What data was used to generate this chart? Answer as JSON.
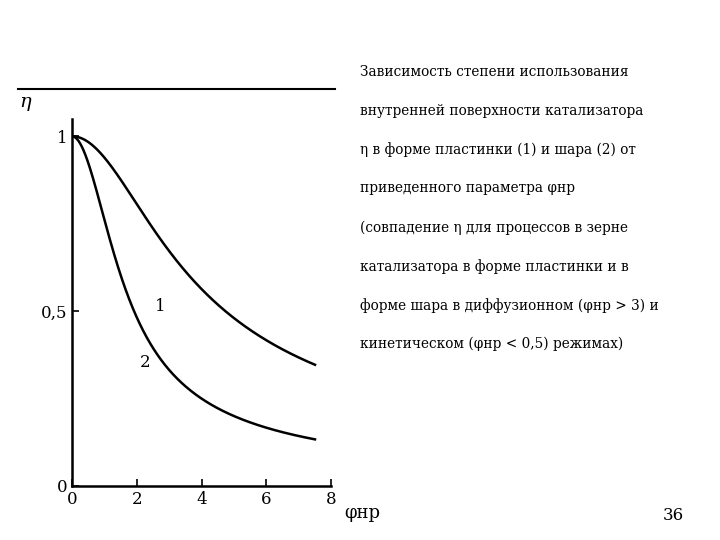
{
  "xlabel": "φнр",
  "ylabel": "η",
  "xlim": [
    0,
    8.0
  ],
  "ylim": [
    0,
    1.05
  ],
  "xticks": [
    0,
    2,
    4,
    6,
    8
  ],
  "yticks": [
    0,
    0.5,
    1
  ],
  "ytick_labels": [
    "0",
    "0,5",
    "1"
  ],
  "curve1_label": "1",
  "curve2_label": "2",
  "linecolor": "#000000",
  "background": "#ffffff",
  "page_number": "36",
  "sq1_color": "#ffee00",
  "sq2_color": "#dd0000",
  "sq3_color": "#2244cc",
  "axis_linewidth": 1.8,
  "curve_linewidth": 1.8,
  "annotation_line1": "Зависимость степени использования",
  "annotation_line2": "внутренней поверхности катализатора",
  "annotation_line3": "η в форме пластинки (1) и шара (2) от",
  "annotation_line4": "приведенного параметра φнр",
  "annotation_line5": "(совпадение η для процессов в зерне",
  "annotation_line6": "катализатора в форме пластинки и в",
  "annotation_line7": "форме шара в диффузионном (φнр > 3) и",
  "annotation_line8": "кинетическом (φнр < 0,5) режимах)"
}
